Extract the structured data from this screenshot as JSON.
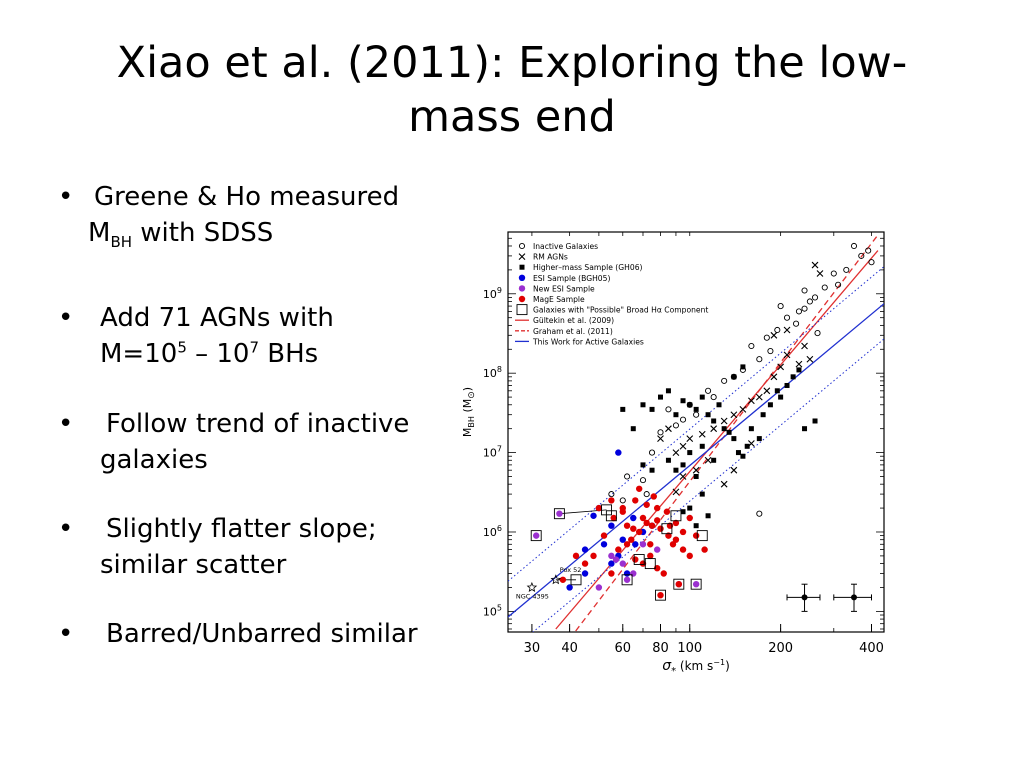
{
  "slide": {
    "title_line1": "Xiao et al. (2011): Exploring the low-",
    "title_line2": "mass end",
    "bullets": [
      {
        "marker": "•",
        "line1_pre": "Greene & Ho measured",
        "line2_pre": "M",
        "line2_sub": "BH",
        "line2_post": " with SDSS"
      },
      {
        "marker": "•",
        "line1": "Add 71 AGNs with",
        "line2_a": "M=10",
        "line2_sup1": "5",
        "line2_b": " – 10",
        "line2_sup2": "7",
        "line2_c": " BHs"
      },
      {
        "marker": "•",
        "line1": "Follow trend of inactive",
        "line2": "galaxies"
      },
      {
        "marker": "•",
        "line1": "Slightly flatter slope;",
        "line2": "similar scatter"
      },
      {
        "marker": "•",
        "line1": "Barred/Unbarred similar"
      }
    ]
  },
  "chart_data": {
    "type": "scatter",
    "xscale": "log",
    "yscale": "log",
    "xlim": [
      25,
      440
    ],
    "ylim": [
      55000.0,
      6000000000.0
    ],
    "x_ticks": [
      30,
      40,
      60,
      80,
      100,
      200,
      400
    ],
    "x_tick_labels": [
      "30",
      "40",
      "60",
      "80",
      "100",
      "200",
      "400"
    ],
    "y_ticks": [
      100000.0,
      1000000.0,
      10000000.0,
      100000000.0,
      1000000000.0
    ],
    "y_tick_labels": [
      {
        "base": "10",
        "exp": "5"
      },
      {
        "base": "10",
        "exp": "6"
      },
      {
        "base": "10",
        "exp": "7"
      },
      {
        "base": "10",
        "exp": "8"
      },
      {
        "base": "10",
        "exp": "9"
      }
    ],
    "xlabel": {
      "sigma": "σ",
      "sub": "*",
      "rest": " (km s",
      "exp": "−1",
      "close": ")"
    },
    "ylabel": {
      "main": "M",
      "sub": "BH",
      "rest": " (M",
      "sun": "⊙",
      "close": ")"
    },
    "legend_position": "top-left",
    "legend": [
      {
        "label": "Inactive Galaxies",
        "marker": "circle-open",
        "color": "#000000"
      },
      {
        "label": "RM AGNs",
        "marker": "x",
        "color": "#000000"
      },
      {
        "label": "Higher–mass Sample (GH06)",
        "marker": "square",
        "color": "#000000"
      },
      {
        "label": "ESI Sample (BGH05)",
        "marker": "circle",
        "color": "#0000dd"
      },
      {
        "label": "New ESI Sample",
        "marker": "circle",
        "color": "#9b30d0"
      },
      {
        "label": "MagE Sample",
        "marker": "circle",
        "color": "#e00000"
      },
      {
        "label": "Galaxies with \"Possible\" Broad Hα Component",
        "marker": "square-open",
        "color": "#000000"
      },
      {
        "label": "Gültekin et al. (2009)",
        "marker": "line-solid",
        "color": "#e03030"
      },
      {
        "label": "Graham et al. (2011)",
        "marker": "line-dashed",
        "color": "#e03030"
      },
      {
        "label": "This Work for Active Galaxies",
        "marker": "line-solid",
        "color": "#2030d0"
      }
    ],
    "fit_lines": [
      {
        "name": "Gültekin et al. (2009)",
        "style": "solid",
        "color": "#e03030",
        "x": [
          36,
          420
        ],
        "y": [
          60000.0,
          3500000000.0
        ]
      },
      {
        "name": "Graham et al. (2011)",
        "style": "dashed",
        "color": "#e03030",
        "x": [
          40,
          420
        ],
        "y": [
          45000.0,
          5500000000.0
        ]
      },
      {
        "name": "This Work for Active Galaxies",
        "style": "solid",
        "color": "#2030d0",
        "x": [
          25,
          440
        ],
        "y": [
          85000.0,
          750000000.0
        ]
      },
      {
        "name": "scatter upper",
        "style": "dotted",
        "color": "#2030d0",
        "x": [
          25,
          440
        ],
        "y": [
          240000.0,
          2200000000.0
        ]
      },
      {
        "name": "scatter lower",
        "style": "dotted",
        "color": "#2030d0",
        "x": [
          25,
          440
        ],
        "y": [
          30000.0,
          270000000.0
        ]
      }
    ],
    "series": [
      {
        "name": "Inactive Galaxies",
        "marker": "circle-open",
        "color": "#000000",
        "points": [
          [
            350,
            4000000000.0
          ],
          [
            370,
            3000000000.0
          ],
          [
            390,
            3500000000.0
          ],
          [
            400,
            2500000000.0
          ],
          [
            300,
            1800000000.0
          ],
          [
            280,
            1200000000.0
          ],
          [
            260,
            900000000.0
          ],
          [
            250,
            800000000.0
          ],
          [
            240,
            1100000000.0
          ],
          [
            230,
            600000000.0
          ],
          [
            210,
            500000000.0
          ],
          [
            200,
            700000000.0
          ],
          [
            195,
            350000000.0
          ],
          [
            180,
            280000000.0
          ],
          [
            170,
            150000000.0
          ],
          [
            160,
            220000000.0
          ],
          [
            150,
            110000000.0
          ],
          [
            140,
            90000000.0
          ],
          [
            130,
            80000000.0
          ],
          [
            120,
            50000000.0
          ],
          [
            115,
            60000000.0
          ],
          [
            105,
            30000000.0
          ],
          [
            100,
            40000000.0
          ],
          [
            95,
            26000000.0
          ],
          [
            90,
            22000000.0
          ],
          [
            85,
            35000000.0
          ],
          [
            80,
            18000000.0
          ],
          [
            75,
            10000000.0
          ],
          [
            72,
            3000000.0
          ],
          [
            70,
            4500000.0
          ],
          [
            62,
            5000000.0
          ],
          [
            60,
            2500000.0
          ],
          [
            55,
            3000000.0
          ],
          [
            170,
            1700000.0
          ],
          [
            240,
            650000000.0
          ],
          [
            265,
            320000000.0
          ],
          [
            310,
            1300000000.0
          ],
          [
            330,
            2000000000.0
          ],
          [
            225,
            420000000.0
          ],
          [
            185,
            190000000.0
          ]
        ]
      },
      {
        "name": "RM AGNs",
        "marker": "x",
        "color": "#000000",
        "points": [
          [
            260,
            2300000000.0
          ],
          [
            270,
            1800000000.0
          ],
          [
            250,
            150000000.0
          ],
          [
            230,
            130000000.0
          ],
          [
            210,
            170000000.0
          ],
          [
            200,
            120000000.0
          ],
          [
            190,
            90000000.0
          ],
          [
            180,
            60000000.0
          ],
          [
            170,
            50000000.0
          ],
          [
            160,
            45000000.0
          ],
          [
            150,
            35000000.0
          ],
          [
            140,
            30000000.0
          ],
          [
            130,
            25000000.0
          ],
          [
            120,
            20000000.0
          ],
          [
            110,
            17000000.0
          ],
          [
            100,
            15000000.0
          ],
          [
            95,
            12000000.0
          ],
          [
            90,
            10000000.0
          ],
          [
            85,
            20000000.0
          ],
          [
            80,
            15000000.0
          ],
          [
            115,
            8000000.0
          ],
          [
            105,
            6000000.0
          ],
          [
            95,
            5000000.0
          ],
          [
            90,
            3200000.0
          ],
          [
            140,
            6000000.0
          ],
          [
            130,
            4000000.0
          ],
          [
            160,
            13000000.0
          ],
          [
            210,
            350000000.0
          ],
          [
            190,
            300000000.0
          ],
          [
            240,
            220000000.0
          ]
        ]
      },
      {
        "name": "Higher–mass Sample (GH06)",
        "marker": "square",
        "color": "#000000",
        "points": [
          [
            60,
            35000000.0
          ],
          [
            65,
            20000000.0
          ],
          [
            70,
            40000000.0
          ],
          [
            75,
            35000000.0
          ],
          [
            80,
            50000000.0
          ],
          [
            85,
            60000000.0
          ],
          [
            90,
            30000000.0
          ],
          [
            95,
            45000000.0
          ],
          [
            100,
            40000000.0
          ],
          [
            105,
            35000000.0
          ],
          [
            110,
            50000000.0
          ],
          [
            115,
            30000000.0
          ],
          [
            120,
            25000000.0
          ],
          [
            125,
            40000000.0
          ],
          [
            130,
            20000000.0
          ],
          [
            135,
            18000000.0
          ],
          [
            140,
            15000000.0
          ],
          [
            145,
            10000000.0
          ],
          [
            150,
            9000000.0
          ],
          [
            155,
            12000000.0
          ],
          [
            160,
            20000000.0
          ],
          [
            170,
            15000000.0
          ],
          [
            175,
            30000000.0
          ],
          [
            185,
            40000000.0
          ],
          [
            195,
            60000000.0
          ],
          [
            200,
            50000000.0
          ],
          [
            210,
            70000000.0
          ],
          [
            220,
            90000000.0
          ],
          [
            230,
            110000000.0
          ],
          [
            260,
            25000000.0
          ],
          [
            240,
            20000000.0
          ],
          [
            110,
            12000000.0
          ],
          [
            100,
            10000000.0
          ],
          [
            95,
            7000000.0
          ],
          [
            90,
            6000000.0
          ],
          [
            105,
            5000000.0
          ],
          [
            85,
            8000000.0
          ],
          [
            120,
            8000000.0
          ],
          [
            75,
            6000000.0
          ],
          [
            70,
            7000000.0
          ],
          [
            110,
            3000000.0
          ],
          [
            115,
            1600000.0
          ],
          [
            100,
            2000000.0
          ],
          [
            105,
            1200000.0
          ],
          [
            95,
            1800000.0
          ],
          [
            140,
            90000000.0
          ],
          [
            150,
            120000000.0
          ]
        ]
      },
      {
        "name": "ESI Sample (BGH05)",
        "marker": "circle",
        "color": "#0000dd",
        "points": [
          [
            58,
            10000000.0
          ],
          [
            50,
            2000000.0
          ],
          [
            48,
            1600000.0
          ],
          [
            55,
            1200000.0
          ],
          [
            65,
            1500000.0
          ],
          [
            70,
            1000000.0
          ],
          [
            60,
            800000.0
          ],
          [
            52,
            700000.0
          ],
          [
            45,
            600000.0
          ],
          [
            55,
            400000.0
          ],
          [
            40,
            200000.0
          ],
          [
            62,
            300000.0
          ],
          [
            58,
            500000.0
          ],
          [
            66,
            700000.0
          ],
          [
            45,
            300000.0
          ],
          [
            75,
            1200000.0
          ]
        ]
      },
      {
        "name": "New ESI Sample",
        "marker": "circle",
        "color": "#9b30d0",
        "points": [
          [
            31,
            900000.0
          ],
          [
            37,
            1700000.0
          ],
          [
            55,
            500000.0
          ],
          [
            57,
            450000.0
          ],
          [
            60,
            400000.0
          ],
          [
            62,
            250000.0
          ],
          [
            78,
            600000.0
          ],
          [
            70,
            700000.0
          ],
          [
            92,
            220000.0
          ],
          [
            65,
            300000.0
          ],
          [
            105,
            220000.0
          ],
          [
            50,
            200000.0
          ]
        ]
      },
      {
        "name": "MagE Sample",
        "marker": "circle",
        "color": "#e00000",
        "points": [
          [
            50,
            2000000.0
          ],
          [
            55,
            2500000.0
          ],
          [
            60,
            1800000.0
          ],
          [
            62,
            1200000.0
          ],
          [
            65,
            1100000.0
          ],
          [
            68,
            1000000.0
          ],
          [
            70,
            1500000.0
          ],
          [
            72,
            1300000.0
          ],
          [
            75,
            1200000.0
          ],
          [
            78,
            1400000.0
          ],
          [
            80,
            1100000.0
          ],
          [
            85,
            900000.0
          ],
          [
            90,
            800000.0
          ],
          [
            95,
            1000000.0
          ],
          [
            100,
            1500000.0
          ],
          [
            105,
            900000.0
          ],
          [
            58,
            600000.0
          ],
          [
            62,
            700000.0
          ],
          [
            66,
            450000.0
          ],
          [
            70,
            400000.0
          ],
          [
            74,
            500000.0
          ],
          [
            78,
            350000.0
          ],
          [
            82,
            300000.0
          ],
          [
            88,
            700000.0
          ],
          [
            52,
            900000.0
          ],
          [
            48,
            500000.0
          ],
          [
            45,
            400000.0
          ],
          [
            42,
            500000.0
          ],
          [
            38,
            250000.0
          ],
          [
            55,
            300000.0
          ],
          [
            60,
            2000000.0
          ],
          [
            66,
            2500000.0
          ],
          [
            72,
            2200000.0
          ],
          [
            78,
            2000000.0
          ],
          [
            84,
            1800000.0
          ],
          [
            68,
            3500000.0
          ],
          [
            76,
            2800000.0
          ],
          [
            90,
            1300000.0
          ],
          [
            95,
            600000.0
          ],
          [
            112,
            600000.0
          ],
          [
            80,
            160000.0
          ],
          [
            92,
            220000.0
          ],
          [
            64,
            800000.0
          ],
          [
            56,
            1500000.0
          ],
          [
            86,
            1200000.0
          ],
          [
            100,
            500000.0
          ],
          [
            74,
            700000.0
          ]
        ]
      },
      {
        "name": "Galaxies with \"Possible\" Broad Hα Component",
        "marker": "square-open",
        "color": "#000000",
        "points": [
          [
            31,
            900000.0
          ],
          [
            37,
            1700000.0
          ],
          [
            53,
            1900000.0
          ],
          [
            55,
            1600000.0
          ],
          [
            68,
            450000.0
          ],
          [
            80,
            160000.0
          ],
          [
            92,
            220000.0
          ],
          [
            105,
            220000.0
          ],
          [
            110,
            900000.0
          ],
          [
            84,
            1100000.0
          ],
          [
            90,
            1600000.0
          ],
          [
            42,
            250000.0
          ],
          [
            62,
            250000.0
          ],
          [
            74,
            400000.0
          ]
        ]
      }
    ],
    "connectors": [
      [
        [
          37,
          1700000.0
        ],
        [
          53,
          1900000.0
        ]
      ],
      [
        [
          36,
          250000.0
        ],
        [
          42,
          250000.0
        ]
      ]
    ],
    "special_points": [
      {
        "label": "Pox 52",
        "marker": "star-open",
        "x": 36,
        "y": 250000.0
      },
      {
        "label": "NGC 4395",
        "marker": "star-open",
        "x": 30,
        "y": 200000.0
      }
    ],
    "error_bars": [
      {
        "x": 240,
        "y": 150000.0,
        "xerr": [
          210,
          270
        ],
        "yerr": [
          100000.0,
          220000.0
        ]
      },
      {
        "x": 350,
        "y": 150000.0,
        "xerr": [
          300,
          400
        ],
        "yerr": [
          100000.0,
          220000.0
        ]
      }
    ]
  }
}
